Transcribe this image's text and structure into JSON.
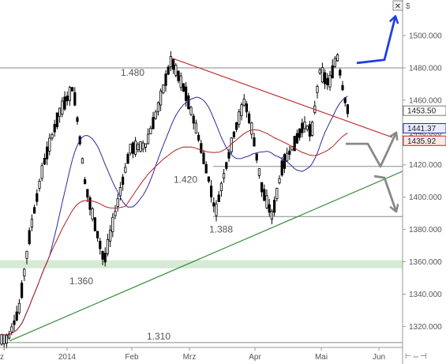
{
  "header": {
    "currency_symbol": "$",
    "close_glyph": "✕"
  },
  "footer": {
    "scroll_glyphs": "⊢⇔⊣"
  },
  "chart_data": {
    "type": "candlestick",
    "ylim": [
      1307,
      1522
    ],
    "y_ticks": [
      {
        "value": 1320,
        "label": "1320.000"
      },
      {
        "value": 1340,
        "label": "1340.000"
      },
      {
        "value": 1360,
        "label": "1360.000"
      },
      {
        "value": 1380,
        "label": "1380.000"
      },
      {
        "value": 1400,
        "label": "1400.000"
      },
      {
        "value": 1420,
        "label": "1420.000"
      },
      {
        "value": 1440,
        "label": "1440.000"
      },
      {
        "value": 1460,
        "label": "1460.000"
      },
      {
        "value": 1480,
        "label": "1480.000"
      },
      {
        "value": 1500,
        "label": "1500.000"
      }
    ],
    "x_ticks": [
      "ez",
      "2014",
      "Feb",
      "Mrz",
      "Apr",
      "Mai",
      "Jun"
    ],
    "level_labels": [
      "1.480",
      "1.420",
      "1.388",
      "1.360",
      "1.310"
    ],
    "price_boxes": [
      {
        "label": "1453.50",
        "value": 1453.5,
        "color": "#ffffff",
        "border": "#777777"
      },
      {
        "label": "1441.37",
        "value": 1441.37,
        "color": "#e8ecff",
        "border": "#2233aa"
      },
      {
        "label": "1435.92",
        "value": 1435.92,
        "color": "#ffe8e8",
        "border": "#bb2222"
      }
    ],
    "horizontal_levels": [
      1480,
      1419,
      1388,
      1310
    ],
    "support_zone": [
      1356,
      1361
    ],
    "series": [
      {
        "name": "",
        "kind": "candles"
      },
      {
        "name": "",
        "kind": "ma",
        "color": "#2a2a9e",
        "period": 20
      },
      {
        "name": "",
        "kind": "ma",
        "color": "#b02020",
        "period": 50
      }
    ],
    "trendlines": [
      {
        "color": "#c03030",
        "from": [
          218,
          1486
        ],
        "to": [
          497,
          1437
        ]
      },
      {
        "color": "#3a8a3a",
        "from": [
          12,
          1311
        ],
        "to": [
          510,
          1416
        ]
      }
    ],
    "arrows": [
      {
        "color": "#1f3fe0",
        "direction": "up"
      },
      {
        "color": "#888888",
        "direction": "up-scenario"
      },
      {
        "color": "#888888",
        "direction": "down-scenario"
      }
    ],
    "key_points": [
      {
        "x": 10,
        "value": 1312
      },
      {
        "x": 24,
        "value": 1330
      },
      {
        "x": 38,
        "value": 1378
      },
      {
        "x": 55,
        "value": 1420
      },
      {
        "x": 75,
        "value": 1452
      },
      {
        "x": 93,
        "value": 1468
      },
      {
        "x": 108,
        "value": 1408
      },
      {
        "x": 122,
        "value": 1380
      },
      {
        "x": 132,
        "value": 1360
      },
      {
        "x": 147,
        "value": 1392
      },
      {
        "x": 165,
        "value": 1430
      },
      {
        "x": 185,
        "value": 1432
      },
      {
        "x": 200,
        "value": 1455
      },
      {
        "x": 217,
        "value": 1485
      },
      {
        "x": 235,
        "value": 1465
      },
      {
        "x": 250,
        "value": 1440
      },
      {
        "x": 265,
        "value": 1410
      },
      {
        "x": 273,
        "value": 1390
      },
      {
        "x": 283,
        "value": 1412
      },
      {
        "x": 297,
        "value": 1440
      },
      {
        "x": 310,
        "value": 1460
      },
      {
        "x": 320,
        "value": 1440
      },
      {
        "x": 332,
        "value": 1405
      },
      {
        "x": 345,
        "value": 1388
      },
      {
        "x": 358,
        "value": 1420
      },
      {
        "x": 372,
        "value": 1432
      },
      {
        "x": 385,
        "value": 1445
      },
      {
        "x": 395,
        "value": 1440
      },
      {
        "x": 405,
        "value": 1478
      },
      {
        "x": 417,
        "value": 1470
      },
      {
        "x": 427,
        "value": 1488
      },
      {
        "x": 436,
        "value": 1462
      },
      {
        "x": 443,
        "value": 1450
      }
    ]
  }
}
